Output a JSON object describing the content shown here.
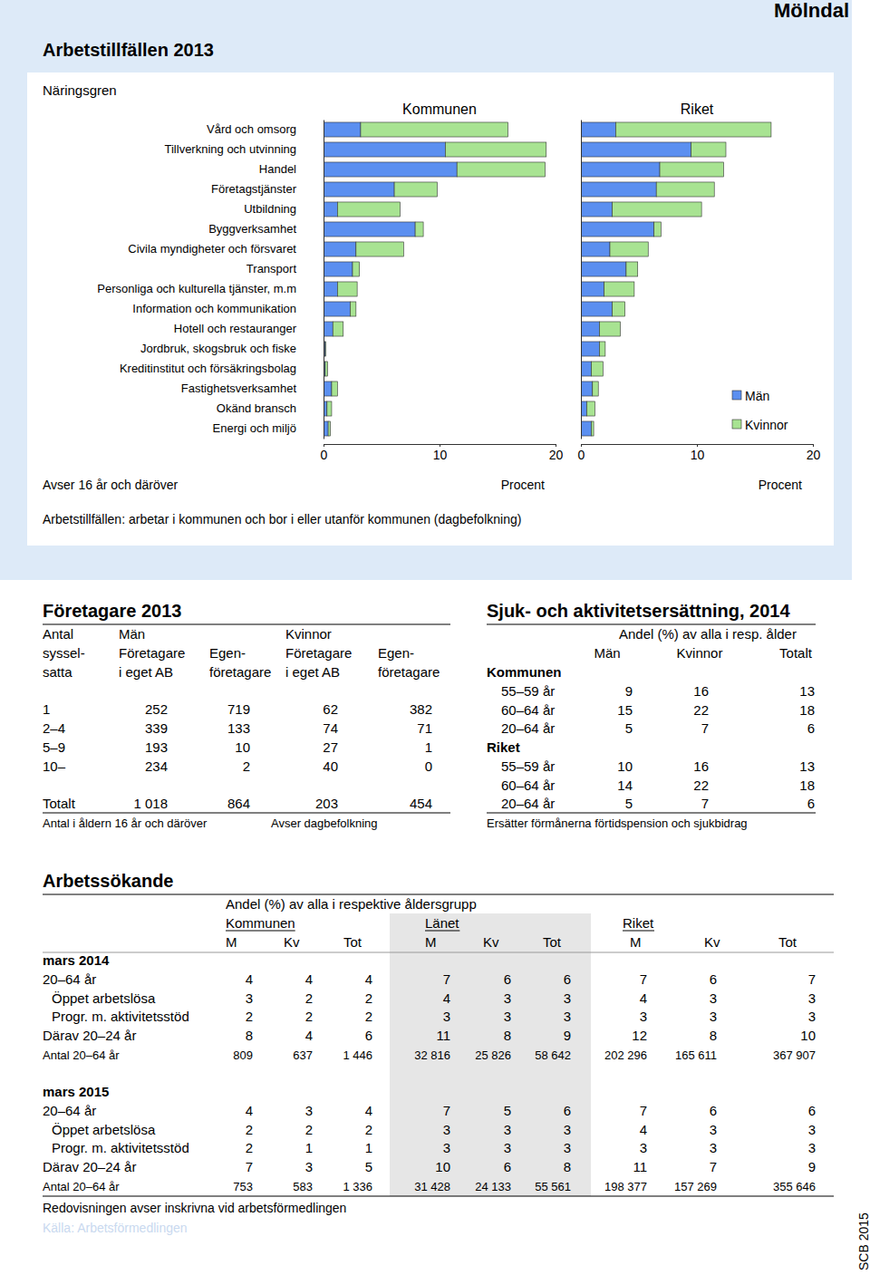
{
  "header": {
    "place": "Mölndal"
  },
  "employment": {
    "title": "Arbetstillfällen 2013",
    "category_heading": "Näringsgren",
    "note": "Avser 16 år och däröver",
    "footnote": "Arbetstillfällen: arbetar i kommunen och bor i eller utanför kommunen (dagbefolkning)"
  },
  "chart_data": [
    {
      "type": "bar",
      "orientation": "horizontal",
      "stacked": true,
      "title": "Kommunen",
      "xlabel": "Procent",
      "categories": [
        "Vård och omsorg",
        "Tillverkning och utvinning",
        "Handel",
        "Företagstjänster",
        "Utbildning",
        "Byggverksamhet",
        "Civila myndigheter och försvaret",
        "Transport",
        "Personliga och kulturella tjänster, m.m",
        "Information och kommunikation",
        "Hotell och restauranger",
        "Jordbruk, skogsbruk och fiske",
        "Kreditinstitut och försäkringsbolag",
        "Fastighetsverksamhet",
        "Okänd bransch",
        "Energi och miljö"
      ],
      "series": [
        {
          "color": "#5b8ff0",
          "values": [
            3.2,
            10.5,
            11.5,
            6.1,
            1.2,
            7.9,
            2.8,
            2.5,
            1.2,
            2.3,
            0.8,
            0.15,
            0.15,
            0.7,
            0.3,
            0.4
          ]
        },
        {
          "color": "#a8e392",
          "values": [
            12.7,
            8.7,
            7.6,
            3.7,
            5.4,
            0.7,
            4.1,
            0.6,
            1.7,
            0.5,
            0.9,
            0.05,
            0.2,
            0.5,
            0.4,
            0.2
          ]
        }
      ],
      "xlim": [
        0,
        20
      ],
      "xticks": [
        0,
        10,
        20
      ]
    },
    {
      "type": "bar",
      "orientation": "horizontal",
      "stacked": true,
      "title": "Riket",
      "xlabel": "Procent",
      "tick_labels": "x",
      "legend": "right",
      "categories": [
        "Vård och omsorg",
        "Tillverkning och utvinning",
        "Handel",
        "Företagstjänster",
        "Utbildning",
        "Byggverksamhet",
        "Civila myndigheter och försvaret",
        "Transport",
        "Personliga och kulturella tjänster, m.m",
        "Information och kommunikation",
        "Hotell och restauranger",
        "Jordbruk, skogsbruk och fiske",
        "Kreditinstitut och försäkringsbolag",
        "Fastighetsverksamhet",
        "Okänd bransch",
        "Energi och miljö"
      ],
      "series": [
        {
          "name": "Män",
          "color": "#5b8ff0",
          "values": [
            3.0,
            9.5,
            6.8,
            6.5,
            2.7,
            6.3,
            2.5,
            3.9,
            2.0,
            2.7,
            1.6,
            1.6,
            0.9,
            1.0,
            0.5,
            0.9
          ]
        },
        {
          "name": "Kvinnor",
          "color": "#a8e392",
          "values": [
            13.4,
            3.0,
            5.5,
            5.0,
            7.7,
            0.6,
            3.3,
            1.0,
            2.6,
            1.1,
            1.8,
            0.5,
            1.0,
            0.5,
            0.7,
            0.2
          ]
        }
      ],
      "xlim": [
        0,
        20
      ],
      "xticks": [
        0,
        10,
        20
      ]
    }
  ],
  "entrepreneurs": {
    "title": "Företagare 2013",
    "group_headers": [
      "Antal",
      "Män",
      "Kvinnor"
    ],
    "column_headers": [
      [
        "syssel-",
        "satta"
      ],
      [
        "Företagare",
        "i eget AB"
      ],
      [
        "Egen-",
        "företagare"
      ],
      [
        "Företagare",
        "i eget AB"
      ],
      [
        "Egen-",
        "företagare"
      ]
    ],
    "rows": [
      [
        "1",
        252,
        719,
        62,
        382
      ],
      [
        "2–4",
        339,
        133,
        74,
        71
      ],
      [
        "5–9",
        193,
        10,
        27,
        1
      ],
      [
        "10–",
        234,
        2,
        40,
        0
      ]
    ],
    "total": [
      "Totalt",
      "1 018",
      864,
      203,
      454
    ],
    "notes": [
      "Antal i åldern 16 år och däröver",
      "Avser dagbefolkning"
    ]
  },
  "sickness": {
    "title": "Sjuk- och aktivitetsersättning, 2014",
    "header": "Andel (%) av alla i resp. ålder",
    "columns": [
      "Män",
      "Kvinnor",
      "Totalt"
    ],
    "groups": [
      {
        "name": "Kommunen",
        "rows": [
          [
            "55–59 år",
            9,
            16,
            13
          ],
          [
            "60–64 år",
            15,
            22,
            18
          ],
          [
            "20–64 år",
            5,
            7,
            6
          ]
        ]
      },
      {
        "name": "Riket",
        "rows": [
          [
            "55–59 år",
            10,
            16,
            13
          ],
          [
            "60–64 år",
            14,
            22,
            18
          ],
          [
            "20–64 år",
            5,
            7,
            6
          ]
        ]
      }
    ],
    "note": "Ersätter förmånerna förtidspension och sjukbidrag"
  },
  "jobseekers": {
    "title": "Arbetssökande",
    "header": "Andel (%) av alla i respektive åldersgrupp",
    "groups": [
      "Kommunen",
      "Länet",
      "Riket"
    ],
    "columns": [
      "M",
      "Kv",
      "Tot",
      "M",
      "Kv",
      "Tot",
      "M",
      "Kv",
      "Tot"
    ],
    "periods": [
      {
        "label": "mars 2014",
        "rows": [
          [
            "20–64 år",
            4,
            4,
            4,
            7,
            6,
            6,
            7,
            6,
            7
          ],
          [
            "Öppet arbetslösa",
            3,
            2,
            2,
            4,
            3,
            3,
            4,
            3,
            3
          ],
          [
            "Progr. m. aktivitetsstöd",
            2,
            2,
            2,
            3,
            3,
            3,
            3,
            3,
            3
          ],
          [
            "Därav 20–24 år",
            8,
            4,
            6,
            11,
            8,
            9,
            12,
            8,
            10
          ],
          [
            "Antal 20–64 år",
            809,
            637,
            "1 446",
            "32 816",
            "25 826",
            "58 642",
            "202 296",
            "165 611",
            "367 907"
          ]
        ]
      },
      {
        "label": "mars 2015",
        "rows": [
          [
            "20–64 år",
            4,
            3,
            4,
            7,
            5,
            6,
            7,
            6,
            6
          ],
          [
            "Öppet arbetslösa",
            2,
            2,
            2,
            3,
            3,
            3,
            4,
            3,
            3
          ],
          [
            "Progr. m. aktivitetsstöd",
            2,
            1,
            1,
            3,
            3,
            3,
            3,
            3,
            3
          ],
          [
            "Därav 20–24 år",
            7,
            3,
            5,
            10,
            6,
            8,
            11,
            7,
            9
          ],
          [
            "Antal 20–64 år",
            753,
            583,
            "1 336",
            "31 428",
            "24 133",
            "55 561",
            "198 377",
            "157 269",
            "355 646"
          ]
        ]
      }
    ],
    "note": "Redovisningen avser inskrivna vid arbetsförmedlingen",
    "source": "Källa: Arbetsförmedlingen"
  },
  "footer": {
    "publisher": "SCB 2015"
  }
}
